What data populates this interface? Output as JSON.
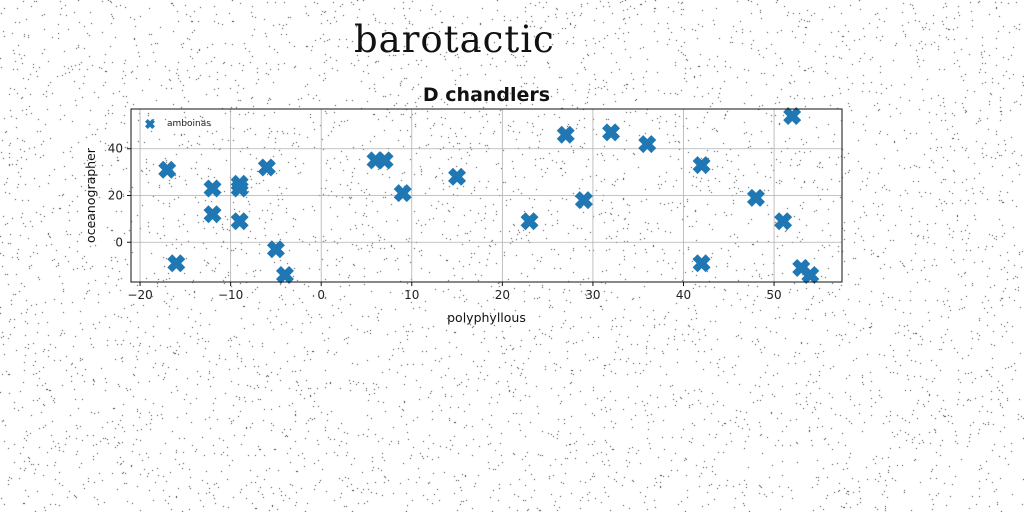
{
  "page": {
    "title": "barotactic"
  },
  "chart_data": {
    "type": "scatter",
    "title": "D chandlers",
    "xlabel": "polyphyllous",
    "ylabel": "oceanographer",
    "xlim": [
      -21,
      57.5
    ],
    "ylim": [
      -17,
      57
    ],
    "xticks": [
      -20,
      -10,
      0,
      10,
      20,
      30,
      40,
      50
    ],
    "xtick_labels": [
      "−20",
      "−10",
      "0",
      "10",
      "20",
      "30",
      "40",
      "50"
    ],
    "yticks": [
      0,
      20,
      40
    ],
    "ytick_labels": [
      "0",
      "20",
      "40"
    ],
    "grid": true,
    "legend_position": "upper-left",
    "marker": "X",
    "color": "#1f77b4",
    "series": [
      {
        "name": "amboinas",
        "points": [
          {
            "x": -17,
            "y": 31
          },
          {
            "x": -16,
            "y": -9
          },
          {
            "x": -12,
            "y": 23
          },
          {
            "x": -12,
            "y": 12
          },
          {
            "x": -9,
            "y": 25
          },
          {
            "x": -9,
            "y": 23
          },
          {
            "x": -9,
            "y": 9
          },
          {
            "x": -6,
            "y": 32
          },
          {
            "x": -5,
            "y": -3
          },
          {
            "x": -4,
            "y": -14
          },
          {
            "x": 6,
            "y": 35
          },
          {
            "x": 7,
            "y": 35
          },
          {
            "x": 9,
            "y": 21
          },
          {
            "x": 15,
            "y": 28
          },
          {
            "x": 23,
            "y": 9
          },
          {
            "x": 27,
            "y": 46
          },
          {
            "x": 29,
            "y": 18
          },
          {
            "x": 32,
            "y": 47
          },
          {
            "x": 36,
            "y": 42
          },
          {
            "x": 42,
            "y": 33
          },
          {
            "x": 42,
            "y": -9
          },
          {
            "x": 48,
            "y": 19
          },
          {
            "x": 51,
            "y": 9
          },
          {
            "x": 52,
            "y": 54
          },
          {
            "x": 53,
            "y": -11
          },
          {
            "x": 54,
            "y": -14
          }
        ]
      }
    ]
  }
}
